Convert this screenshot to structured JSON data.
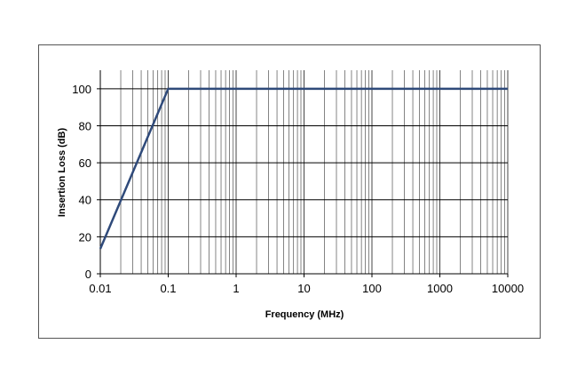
{
  "chart_data": {
    "type": "line",
    "title": "",
    "xlabel": "Frequency (MHz)",
    "ylabel": "Insertion Loss (dB)",
    "xscale": "log",
    "xlim": [
      0.01,
      10000
    ],
    "ylim": [
      0,
      110
    ],
    "x_ticks": [
      "0.01",
      "0.1",
      "1",
      "10",
      "100",
      "1000",
      "10000"
    ],
    "y_ticks": [
      "0",
      "20",
      "40",
      "60",
      "80",
      "100"
    ],
    "grid": true,
    "legend": "none",
    "series": [
      {
        "x": [
          0.01,
          0.1,
          10000
        ],
        "y": [
          13.5,
          100,
          100
        ],
        "color": "#2F4A7A"
      }
    ]
  }
}
